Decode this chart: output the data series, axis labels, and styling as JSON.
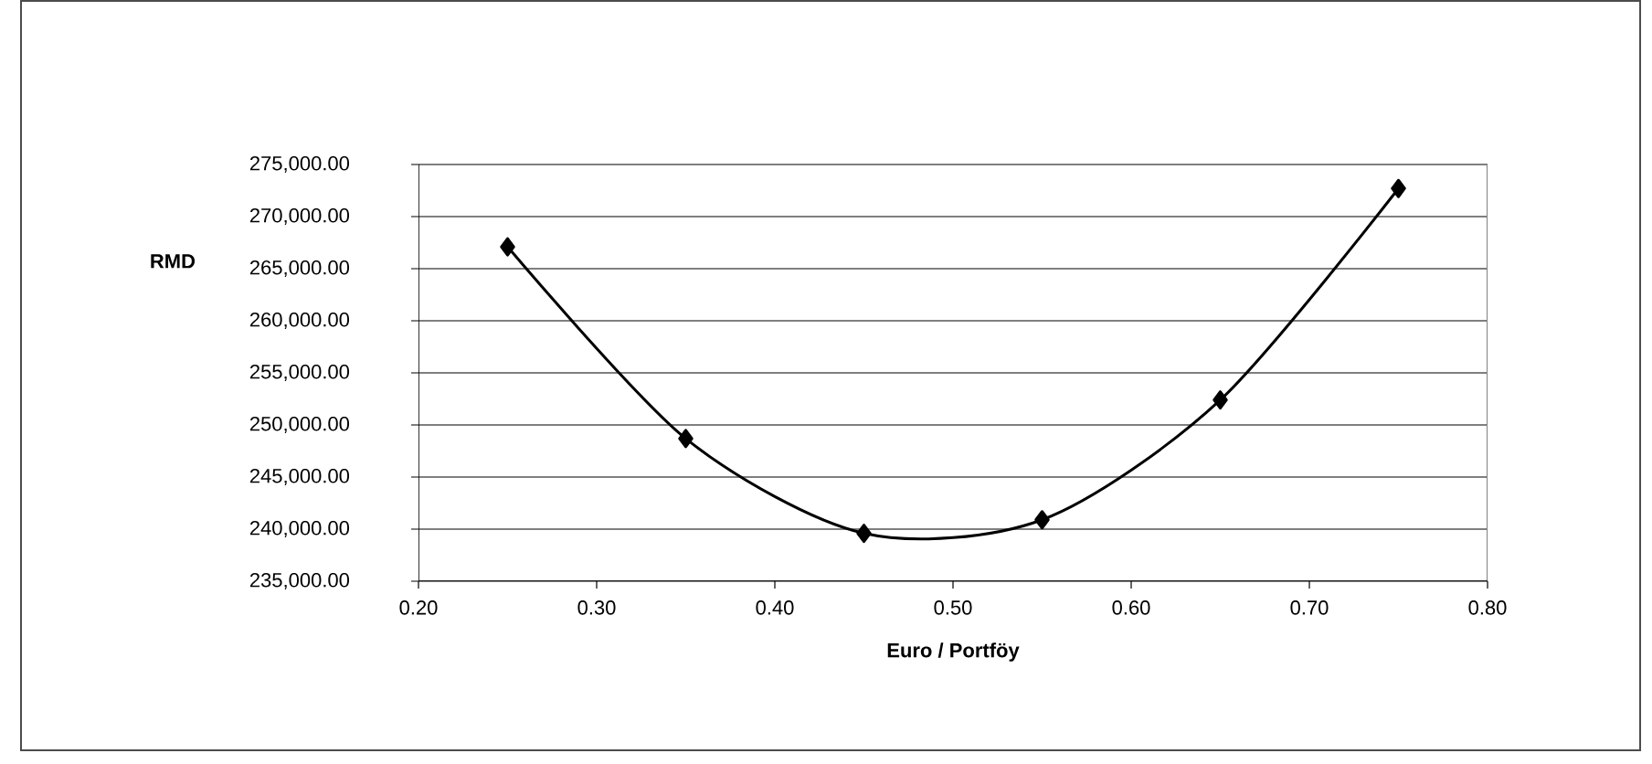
{
  "chart_data": {
    "type": "line",
    "xlabel": "Euro / Portföy",
    "ylabel": "RMD",
    "x": [
      0.25,
      0.35,
      0.45,
      0.55,
      0.65,
      0.75
    ],
    "series": [
      {
        "color": "#000000",
        "values": [
          267100,
          248700,
          239600,
          240900,
          252400,
          272700
        ]
      }
    ],
    "xlim": [
      0.2,
      0.8
    ],
    "xticks": [
      {
        "value": 0.2,
        "label": "0.20"
      },
      {
        "value": 0.3,
        "label": "0.30"
      },
      {
        "value": 0.4,
        "label": "0.40"
      },
      {
        "value": 0.5,
        "label": "0.50"
      },
      {
        "value": 0.6,
        "label": "0.60"
      },
      {
        "value": 0.7,
        "label": "0.70"
      },
      {
        "value": 0.8,
        "label": "0.80"
      }
    ],
    "ylim": [
      235000,
      275000
    ],
    "yticks": [
      {
        "value": 235000,
        "label": "235,000.00"
      },
      {
        "value": 240000,
        "label": "240,000.00"
      },
      {
        "value": 245000,
        "label": "245,000.00"
      },
      {
        "value": 250000,
        "label": "250,000.00"
      },
      {
        "value": 255000,
        "label": "255,000.00"
      },
      {
        "value": 260000,
        "label": "260,000.00"
      },
      {
        "value": 265000,
        "label": "265,000.00"
      },
      {
        "value": 270000,
        "label": "270,000.00"
      },
      {
        "value": 275000,
        "label": "275,000.00"
      }
    ],
    "grid": "y",
    "marker": "diamond",
    "line_style": "solid"
  }
}
